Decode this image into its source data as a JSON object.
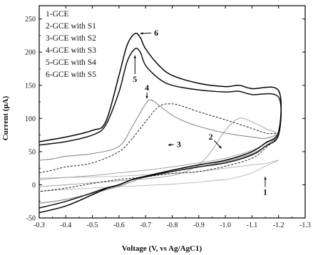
{
  "chart_data": {
    "type": "line",
    "title": "",
    "xlabel": "Voltage (V, vs Ag/AgC1)",
    "ylabel": "Current (μA)",
    "xlim": [
      -0.3,
      -1.3
    ],
    "ylim": [
      -50,
      270
    ],
    "x_ticks": [
      -0.3,
      -0.4,
      -0.5,
      -0.6,
      -0.7,
      -0.8,
      -0.9,
      -1.0,
      -1.1,
      -1.2,
      -1.3
    ],
    "x_tick_labels": [
      "-0.3",
      "-0.4",
      "-0.5",
      "-0.6",
      "-0.7",
      "-0.8",
      "-0.9",
      "-1.0",
      "-1.1",
      "-1.2",
      "-1.3"
    ],
    "y_ticks": [
      -50,
      0,
      50,
      100,
      150,
      200,
      250
    ],
    "y_tick_labels": [
      "-50",
      "0",
      "50",
      "100",
      "150",
      "200",
      "250"
    ],
    "legend_position": "top-left",
    "legend": [
      "1-GCE",
      "2-GCE with S1",
      "3-GCE with S2",
      "4-GCE with S3",
      "5-GCE with S4",
      "6-GCE with S5"
    ],
    "series": [
      {
        "id": "1",
        "color": "#b5b5b5",
        "width": 0.9,
        "dash": "",
        "points": [
          [
            -0.3,
            -10
          ],
          [
            -0.4,
            -7
          ],
          [
            -0.5,
            -5
          ],
          [
            -0.6,
            -3
          ],
          [
            -0.7,
            -1
          ],
          [
            -0.8,
            1
          ],
          [
            -0.9,
            4
          ],
          [
            -1.0,
            8
          ],
          [
            -1.05,
            12
          ],
          [
            -1.1,
            18
          ],
          [
            -1.15,
            28
          ],
          [
            -1.2,
            37
          ],
          [
            -1.15,
            32
          ],
          [
            -1.1,
            30
          ],
          [
            -1.0,
            25
          ],
          [
            -0.9,
            20
          ],
          [
            -0.8,
            17
          ],
          [
            -0.7,
            15
          ],
          [
            -0.6,
            13
          ],
          [
            -0.5,
            12
          ],
          [
            -0.4,
            11
          ],
          [
            -0.3,
            10
          ]
        ]
      },
      {
        "id": "2",
        "color": "#9a9a9a",
        "width": 0.9,
        "dash": "",
        "points": [
          [
            -0.3,
            -3
          ],
          [
            -0.4,
            0
          ],
          [
            -0.5,
            3
          ],
          [
            -0.6,
            6
          ],
          [
            -0.7,
            9
          ],
          [
            -0.8,
            14
          ],
          [
            -0.85,
            20
          ],
          [
            -0.9,
            30
          ],
          [
            -0.95,
            52
          ],
          [
            -1.0,
            82
          ],
          [
            -1.05,
            100
          ],
          [
            -1.1,
            95
          ],
          [
            -1.15,
            85
          ],
          [
            -1.2,
            75
          ],
          [
            -1.15,
            62
          ],
          [
            -1.1,
            52
          ],
          [
            -1.0,
            40
          ],
          [
            -0.9,
            33
          ],
          [
            -0.8,
            27
          ],
          [
            -0.7,
            22
          ],
          [
            -0.6,
            18
          ],
          [
            -0.5,
            14
          ],
          [
            -0.4,
            11
          ],
          [
            -0.3,
            8
          ]
        ]
      },
      {
        "id": "3",
        "color": "#222222",
        "width": 1.0,
        "dash": "3,2",
        "points": [
          [
            -0.3,
            18
          ],
          [
            -0.35,
            22
          ],
          [
            -0.4,
            27
          ],
          [
            -0.5,
            33
          ],
          [
            -0.6,
            50
          ],
          [
            -0.65,
            70
          ],
          [
            -0.7,
            95
          ],
          [
            -0.75,
            118
          ],
          [
            -0.8,
            122
          ],
          [
            -0.85,
            117
          ],
          [
            -0.9,
            110
          ],
          [
            -1.0,
            98
          ],
          [
            -1.1,
            85
          ],
          [
            -1.15,
            78
          ],
          [
            -1.2,
            75
          ],
          [
            -1.15,
            55
          ],
          [
            -1.1,
            40
          ],
          [
            -1.0,
            28
          ],
          [
            -0.9,
            20
          ],
          [
            -0.8,
            17
          ],
          [
            -0.7,
            12
          ],
          [
            -0.6,
            8
          ],
          [
            -0.5,
            2
          ],
          [
            -0.4,
            -5
          ],
          [
            -0.3,
            -10
          ]
        ]
      },
      {
        "id": "4",
        "color": "#8a8a8a",
        "width": 1.1,
        "dash": "",
        "points": [
          [
            -0.3,
            37
          ],
          [
            -0.35,
            39
          ],
          [
            -0.4,
            43
          ],
          [
            -0.5,
            47
          ],
          [
            -0.6,
            58
          ],
          [
            -0.65,
            88
          ],
          [
            -0.7,
            122
          ],
          [
            -0.72,
            128
          ],
          [
            -0.75,
            120
          ],
          [
            -0.8,
            105
          ],
          [
            -0.85,
            95
          ],
          [
            -0.9,
            88
          ],
          [
            -1.0,
            78
          ],
          [
            -1.1,
            72
          ],
          [
            -1.15,
            70
          ],
          [
            -1.2,
            75
          ],
          [
            -1.15,
            58
          ],
          [
            -1.1,
            47
          ],
          [
            -1.0,
            35
          ],
          [
            -0.9,
            27
          ],
          [
            -0.8,
            20
          ],
          [
            -0.7,
            12
          ],
          [
            -0.65,
            5
          ],
          [
            -0.6,
            -2
          ],
          [
            -0.5,
            -13
          ],
          [
            -0.4,
            -22
          ],
          [
            -0.3,
            -28
          ]
        ]
      },
      {
        "id": "5",
        "color": "#111111",
        "width": 1.5,
        "dash": "",
        "points": [
          [
            -0.3,
            60
          ],
          [
            -0.4,
            65
          ],
          [
            -0.5,
            75
          ],
          [
            -0.55,
            90
          ],
          [
            -0.6,
            140
          ],
          [
            -0.63,
            185
          ],
          [
            -0.66,
            205
          ],
          [
            -0.68,
            200
          ],
          [
            -0.7,
            180
          ],
          [
            -0.75,
            160
          ],
          [
            -0.8,
            150
          ],
          [
            -0.9,
            143
          ],
          [
            -1.0,
            140
          ],
          [
            -1.05,
            141
          ],
          [
            -1.1,
            136
          ],
          [
            -1.2,
            132
          ],
          [
            -1.2,
            75
          ],
          [
            -1.15,
            58
          ],
          [
            -1.1,
            45
          ],
          [
            -1.0,
            33
          ],
          [
            -0.9,
            27
          ],
          [
            -0.8,
            20
          ],
          [
            -0.7,
            12
          ],
          [
            -0.65,
            8
          ],
          [
            -0.6,
            0
          ],
          [
            -0.55,
            -5
          ],
          [
            -0.5,
            -12
          ],
          [
            -0.4,
            -25
          ],
          [
            -0.3,
            -35
          ]
        ]
      },
      {
        "id": "6",
        "color": "#000000",
        "width": 1.5,
        "dash": "",
        "points": [
          [
            -0.3,
            65
          ],
          [
            -0.4,
            72
          ],
          [
            -0.5,
            82
          ],
          [
            -0.55,
            95
          ],
          [
            -0.6,
            165
          ],
          [
            -0.63,
            210
          ],
          [
            -0.66,
            228
          ],
          [
            -0.68,
            222
          ],
          [
            -0.7,
            205
          ],
          [
            -0.75,
            180
          ],
          [
            -0.8,
            165
          ],
          [
            -0.9,
            153
          ],
          [
            -1.0,
            148
          ],
          [
            -1.05,
            150
          ],
          [
            -1.1,
            145
          ],
          [
            -1.2,
            142
          ],
          [
            -1.2,
            80
          ],
          [
            -1.15,
            63
          ],
          [
            -1.1,
            50
          ],
          [
            -1.0,
            37
          ],
          [
            -0.9,
            30
          ],
          [
            -0.8,
            22
          ],
          [
            -0.7,
            13
          ],
          [
            -0.65,
            8
          ],
          [
            -0.6,
            0
          ],
          [
            -0.55,
            -6
          ],
          [
            -0.5,
            -15
          ],
          [
            -0.4,
            -32
          ],
          [
            -0.3,
            -42
          ]
        ]
      }
    ],
    "annotations": [
      {
        "text": "1",
        "x": -1.15,
        "y": -15,
        "arrow_to": [
          -1.15,
          12
        ]
      },
      {
        "text": "2",
        "x": -0.945,
        "y": 68,
        "arrow_to": [
          -0.985,
          55
        ]
      },
      {
        "text": "3",
        "x": -0.825,
        "y": 57,
        "arrow_to": [
          -0.785,
          60
        ]
      },
      {
        "text": "4",
        "x": -0.705,
        "y": 142,
        "arrow_to": [
          -0.705,
          130
        ]
      },
      {
        "text": "5",
        "x": -0.66,
        "y": 155,
        "arrow_to": [
          -0.66,
          195
        ]
      },
      {
        "text": "6",
        "x": -0.74,
        "y": 225,
        "arrow_to": [
          -0.68,
          228
        ]
      }
    ]
  }
}
